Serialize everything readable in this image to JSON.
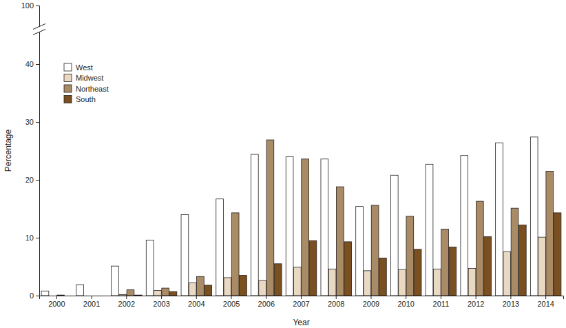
{
  "chart_data": {
    "type": "bar",
    "x_label": "Year",
    "y_label": "Percentage",
    "categories": [
      "2000",
      "2001",
      "2002",
      "2003",
      "2004",
      "2005",
      "2006",
      "2007",
      "2008",
      "2009",
      "2010",
      "2011",
      "2012",
      "2013",
      "2014"
    ],
    "series": [
      {
        "name": "West",
        "color": "#ffffff",
        "values": [
          0.8,
          1.9,
          5.1,
          9.6,
          14.0,
          16.7,
          24.4,
          24.0,
          23.6,
          15.4,
          20.8,
          22.7,
          24.2,
          26.4,
          27.4
        ]
      },
      {
        "name": "Midwest",
        "color": "#ead9c2",
        "values": [
          0,
          0,
          0.2,
          0.9,
          2.2,
          3.1,
          2.6,
          4.9,
          4.6,
          4.3,
          4.5,
          4.6,
          4.7,
          7.6,
          10.1
        ]
      },
      {
        "name": "Northeast",
        "color": "#a98b66",
        "values": [
          0.1,
          0,
          1.0,
          1.3,
          3.3,
          14.3,
          26.9,
          23.6,
          18.8,
          15.6,
          13.7,
          11.5,
          16.3,
          15.1,
          21.5
        ]
      },
      {
        "name": "South",
        "color": "#7b5020",
        "values": [
          0,
          0,
          0.1,
          0.7,
          1.8,
          3.5,
          5.5,
          9.5,
          9.3,
          6.5,
          8.0,
          8.4,
          10.2,
          12.2,
          14.3
        ]
      }
    ],
    "ylim": [
      0,
      100
    ],
    "yticks": [
      0,
      10,
      20,
      30,
      40,
      100
    ],
    "legend": "upper left",
    "grid": false
  }
}
